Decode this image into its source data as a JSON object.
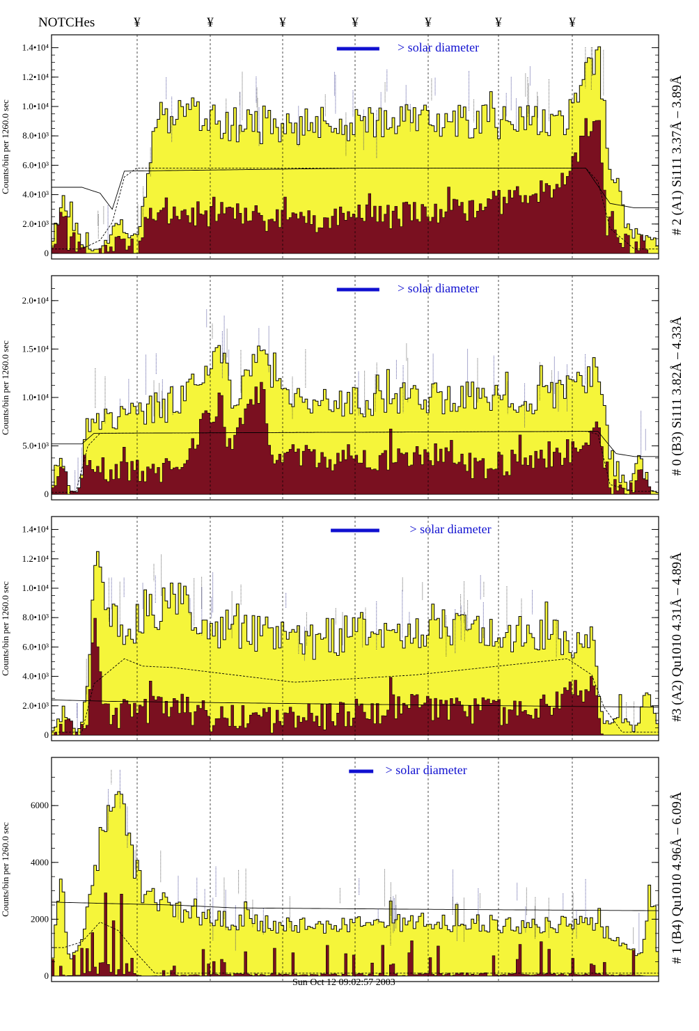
{
  "header": {
    "notches_label": "NOTCHes",
    "notch_symbol": "¥",
    "notch_count": 7
  },
  "footer": {
    "timestamp": "Sun Oct 12 09:02:57 2003"
  },
  "colors": {
    "total_fill": "#f5f53a",
    "component_fill": "#7a1020",
    "legend_bar": "#1010d0",
    "legend_text": "#1010d0",
    "line_label": "#202080",
    "frame": "#000000"
  },
  "chart_data": [
    {
      "type": "area",
      "ylabel": "Counts/bin per 1260.0 sec",
      "side_label": "# 2 (A1) Si111 3.37Å – 3.89Å",
      "legend_text": "> solar diameter",
      "ylim": [
        0,
        14500
      ],
      "yticks": [
        "0",
        "2.0•10³",
        "4.0•10³",
        "6.0•10³",
        "8.0•10³",
        "1.0•10⁴",
        "1.2•10⁴",
        "1.4•10⁴"
      ],
      "ytick_values": [
        0,
        2000,
        4000,
        6000,
        8000,
        10000,
        12000,
        14000
      ],
      "total_anchors": [
        [
          0,
          600
        ],
        [
          2,
          4300
        ],
        [
          5,
          600
        ],
        [
          7,
          200
        ],
        [
          9,
          700
        ],
        [
          11,
          2400
        ],
        [
          14,
          900
        ],
        [
          16,
          5000
        ],
        [
          18,
          9000
        ],
        [
          20,
          9200
        ],
        [
          30,
          8800
        ],
        [
          50,
          8600
        ],
        [
          60,
          8900
        ],
        [
          70,
          9000
        ],
        [
          80,
          9100
        ],
        [
          85,
          9400
        ],
        [
          88,
          12000
        ],
        [
          90,
          14000
        ],
        [
          92,
          6200
        ],
        [
          95,
          1600
        ],
        [
          97,
          1200
        ],
        [
          100,
          700
        ]
      ],
      "component_anchors": [
        [
          0,
          300
        ],
        [
          1.5,
          2800
        ],
        [
          3,
          800
        ],
        [
          6,
          0
        ],
        [
          9,
          200
        ],
        [
          11,
          900
        ],
        [
          14,
          0
        ],
        [
          16,
          3000
        ],
        [
          40,
          2200
        ],
        [
          50,
          2500
        ],
        [
          60,
          2600
        ],
        [
          70,
          3000
        ],
        [
          85,
          4800
        ],
        [
          88,
          8300
        ],
        [
          90,
          9000
        ],
        [
          91.5,
          2000
        ],
        [
          95,
          400
        ],
        [
          97,
          700
        ],
        [
          98.5,
          0
        ],
        [
          100,
          0
        ]
      ],
      "total_noise": 1300,
      "component_noise": 900,
      "dashed_anchors": [
        [
          0,
          300
        ],
        [
          5,
          300
        ],
        [
          8,
          900
        ],
        [
          10,
          2100
        ],
        [
          12,
          5200
        ],
        [
          14,
          5800
        ],
        [
          88,
          5800
        ],
        [
          90,
          4900
        ],
        [
          92,
          1700
        ],
        [
          96,
          300
        ],
        [
          100,
          300
        ]
      ],
      "solid_anchors": [
        [
          0,
          4500
        ],
        [
          5,
          4500
        ],
        [
          8,
          4100
        ],
        [
          10,
          3000
        ],
        [
          12,
          5600
        ],
        [
          50,
          5800
        ],
        [
          88,
          5800
        ],
        [
          92,
          3400
        ],
        [
          96,
          3100
        ],
        [
          100,
          3100
        ]
      ],
      "legend_bar": [
        47,
        54
      ],
      "legend_text_x": 57,
      "seed": 11
    },
    {
      "type": "area",
      "ylabel": "Counts/bin per 1260.0 sec",
      "side_label": "# 0 (B3) Si111 3.82Å – 4.33Å",
      "legend_text": "> solar diameter",
      "ylim": [
        0,
        22000
      ],
      "yticks": [
        "0",
        "5.0•10³",
        "1.0•10⁴",
        "1.5•10⁴",
        "2.0•10⁴"
      ],
      "ytick_values": [
        0,
        5000,
        10000,
        15000,
        20000
      ],
      "total_anchors": [
        [
          0,
          500
        ],
        [
          1.5,
          5200
        ],
        [
          3,
          400
        ],
        [
          4.5,
          300
        ],
        [
          6,
          8000
        ],
        [
          20,
          9000
        ],
        [
          26,
          14000
        ],
        [
          28,
          15000
        ],
        [
          30,
          10000
        ],
        [
          35,
          16000
        ],
        [
          36,
          12000
        ],
        [
          40,
          9800
        ],
        [
          50,
          9600
        ],
        [
          60,
          10000
        ],
        [
          70,
          9900
        ],
        [
          80,
          10000
        ],
        [
          88,
          11500
        ],
        [
          90,
          14000
        ],
        [
          92,
          4000
        ],
        [
          95,
          400
        ],
        [
          97,
          3400
        ],
        [
          99,
          300
        ],
        [
          100,
          300
        ]
      ],
      "component_anchors": [
        [
          0,
          0
        ],
        [
          1.5,
          3500
        ],
        [
          3,
          0
        ],
        [
          6,
          2500
        ],
        [
          20,
          2500
        ],
        [
          26,
          8000
        ],
        [
          28,
          10000
        ],
        [
          29,
          5000
        ],
        [
          33,
          9000
        ],
        [
          35,
          12000
        ],
        [
          36,
          4000
        ],
        [
          50,
          3600
        ],
        [
          65,
          4000
        ],
        [
          70,
          2700
        ],
        [
          85,
          4200
        ],
        [
          88,
          5800
        ],
        [
          90,
          6500
        ],
        [
          92,
          1200
        ],
        [
          95,
          0
        ],
        [
          97,
          2000
        ],
        [
          99,
          0
        ],
        [
          100,
          0
        ]
      ],
      "total_noise": 1700,
      "component_noise": 1300,
      "dashed_anchors": [
        [
          0,
          200
        ],
        [
          4,
          200
        ],
        [
          6,
          5000
        ],
        [
          8,
          6300
        ],
        [
          88,
          6500
        ],
        [
          90,
          6200
        ],
        [
          92,
          1000
        ],
        [
          96,
          300
        ],
        [
          100,
          300
        ]
      ],
      "solid_anchors": [
        [
          0,
          5200
        ],
        [
          5,
          5200
        ],
        [
          7,
          6300
        ],
        [
          90,
          6500
        ],
        [
          93,
          4200
        ],
        [
          96,
          3900
        ],
        [
          100,
          3900
        ]
      ],
      "legend_bar": [
        47,
        54
      ],
      "legend_text_x": 57,
      "seed": 23
    },
    {
      "type": "area",
      "ylabel": "Counts/bin per 1260.0 sec",
      "side_label": "#3 (A2) Qu1010 4.31Å – 4.89Å",
      "legend_text": "> solar diameter",
      "ylim": [
        0,
        14500
      ],
      "yticks": [
        "0",
        "2.0•10³",
        "4.0•10³",
        "6.0•10³",
        "8.0•10³",
        "1.0•10⁴",
        "1.2•10⁴",
        "1.4•10⁴"
      ],
      "ytick_values": [
        0,
        2000,
        4000,
        6000,
        8000,
        10000,
        12000,
        14000
      ],
      "total_anchors": [
        [
          0,
          200
        ],
        [
          2,
          1600
        ],
        [
          4,
          200
        ],
        [
          5,
          700
        ],
        [
          6,
          3000
        ],
        [
          7,
          12500
        ],
        [
          9,
          8500
        ],
        [
          12,
          7000
        ],
        [
          20,
          9200
        ],
        [
          25,
          7500
        ],
        [
          40,
          6200
        ],
        [
          50,
          7000
        ],
        [
          60,
          7200
        ],
        [
          80,
          7000
        ],
        [
          89,
          6300
        ],
        [
          90,
          3000
        ],
        [
          91,
          800
        ],
        [
          94,
          1200
        ],
        [
          96,
          300
        ],
        [
          98,
          2800
        ],
        [
          100,
          400
        ]
      ],
      "component_anchors": [
        [
          0,
          0
        ],
        [
          2,
          300
        ],
        [
          4,
          0
        ],
        [
          6,
          1000
        ],
        [
          7,
          7800
        ],
        [
          8,
          3500
        ],
        [
          10,
          1300
        ],
        [
          20,
          2100
        ],
        [
          25,
          1200
        ],
        [
          40,
          1100
        ],
        [
          50,
          1600
        ],
        [
          60,
          1900
        ],
        [
          80,
          1500
        ],
        [
          88,
          3300
        ],
        [
          89,
          4300
        ],
        [
          90,
          1000
        ],
        [
          91,
          0
        ],
        [
          100,
          0
        ]
      ],
      "total_noise": 1400,
      "component_noise": 1000,
      "dashed_anchors": [
        [
          0,
          200
        ],
        [
          5,
          200
        ],
        [
          7,
          3500
        ],
        [
          12,
          5200
        ],
        [
          15,
          4700
        ],
        [
          20,
          4600
        ],
        [
          40,
          3600
        ],
        [
          60,
          4100
        ],
        [
          85,
          5200
        ],
        [
          89,
          4100
        ],
        [
          91,
          1900
        ],
        [
          94,
          200
        ],
        [
          100,
          200
        ]
      ],
      "solid_anchors": [
        [
          0,
          2400
        ],
        [
          10,
          2300
        ],
        [
          50,
          2100
        ],
        [
          100,
          1900
        ]
      ],
      "legend_bar": [
        46,
        54
      ],
      "legend_text_x": 59,
      "seed": 37
    },
    {
      "type": "area",
      "ylabel": "Counts/bin per 1260.0 sec",
      "side_label": "# 1 (B4) Qu1010 4.96Å – 6.09Å",
      "legend_text": "> solar diameter",
      "ylim": [
        0,
        7500
      ],
      "yticks": [
        "0",
        "2000",
        "4000",
        "6000"
      ],
      "ytick_values": [
        0,
        2000,
        4000,
        6000
      ],
      "total_anchors": [
        [
          0,
          200
        ],
        [
          1.5,
          3600
        ],
        [
          3,
          500
        ],
        [
          5,
          1500
        ],
        [
          7,
          3500
        ],
        [
          9,
          5500
        ],
        [
          10,
          6200
        ],
        [
          11,
          6700
        ],
        [
          12,
          5500
        ],
        [
          13,
          4300
        ],
        [
          15,
          3100
        ],
        [
          20,
          2300
        ],
        [
          30,
          1900
        ],
        [
          40,
          1800
        ],
        [
          50,
          1800
        ],
        [
          60,
          1900
        ],
        [
          80,
          1800
        ],
        [
          90,
          1800
        ],
        [
          95,
          900
        ],
        [
          97,
          800
        ],
        [
          99,
          2900
        ],
        [
          100,
          300
        ]
      ],
      "component_anchors": [
        [
          0,
          0
        ],
        [
          2,
          200
        ],
        [
          5,
          300
        ],
        [
          7,
          1000
        ],
        [
          9,
          2300
        ],
        [
          10,
          1800
        ],
        [
          11,
          1500
        ],
        [
          12,
          2500
        ],
        [
          13,
          500
        ],
        [
          15,
          0
        ],
        [
          30,
          300
        ],
        [
          50,
          300
        ],
        [
          70,
          400
        ],
        [
          90,
          300
        ],
        [
          100,
          0
        ]
      ],
      "total_noise": 700,
      "component_noise": 300,
      "spiky_component": true,
      "dashed_anchors": [
        [
          0,
          1000
        ],
        [
          2,
          1000
        ],
        [
          5,
          1200
        ],
        [
          8,
          1900
        ],
        [
          11,
          1600
        ],
        [
          14,
          800
        ],
        [
          17,
          100
        ],
        [
          100,
          100
        ]
      ],
      "solid_anchors": [
        [
          0,
          2600
        ],
        [
          20,
          2500
        ],
        [
          30,
          2400
        ],
        [
          60,
          2350
        ],
        [
          100,
          2300
        ]
      ],
      "legend_bar": [
        49,
        53
      ],
      "legend_text_x": 55,
      "seed": 53
    }
  ]
}
